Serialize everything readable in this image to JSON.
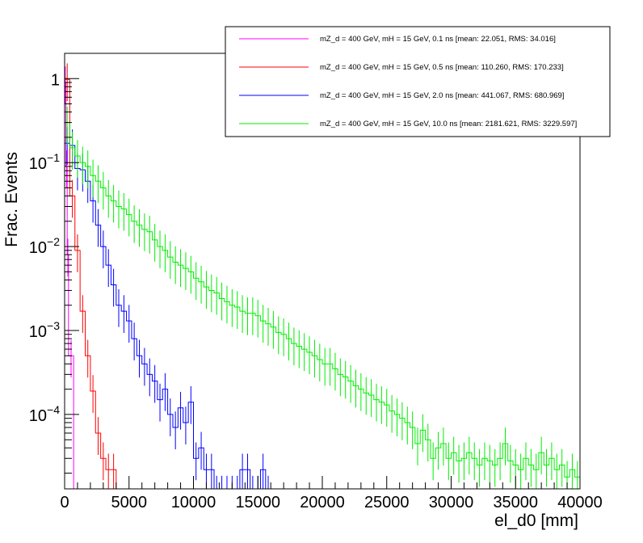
{
  "chart_data": {
    "type": "line",
    "title": "",
    "xlabel": "el_d0 [mm]",
    "ylabel": "Frac. Events",
    "xlim": [
      0,
      40000
    ],
    "ylim": [
      1.3e-05,
      2.0
    ],
    "yscale": "log",
    "grid": false,
    "legend_position": "top-right",
    "x_ticks": [
      0,
      5000,
      10000,
      15000,
      20000,
      25000,
      30000,
      35000,
      40000
    ],
    "x_tick_labels": [
      "0",
      "5000",
      "10000",
      "15000",
      "20000",
      "25000",
      "30000",
      "35000",
      "40000"
    ],
    "y_major_ticks": [
      {
        "value": 0.0001,
        "base": "10",
        "exp": "−4"
      },
      {
        "value": 0.001,
        "base": "10",
        "exp": "−3"
      },
      {
        "value": 0.01,
        "base": "10",
        "exp": "−2"
      },
      {
        "value": 0.1,
        "base": "10",
        "exp": "−1"
      },
      {
        "value": 1,
        "base": "1",
        "exp": ""
      }
    ],
    "bin_width": 400,
    "series": [
      {
        "name": "mZ_d = 400 GeV, mH = 15 GeV, 0.1 ns [mean: 22.051, RMS: 34.016]",
        "color": "#ff00ff",
        "bins": [
          [
            0,
            0.9
          ],
          [
            100,
            0.09
          ],
          [
            200,
            0.008
          ],
          [
            300,
            0.0005
          ]
        ]
      },
      {
        "name": "mZ_d = 400 GeV, mH = 15 GeV, 0.5 ns [mean: 110.260, RMS: 170.233]",
        "color": "#ff0000",
        "bins": [
          [
            0,
            0.98
          ],
          [
            400,
            0.04
          ],
          [
            800,
            0.009
          ],
          [
            1200,
            0.0017
          ],
          [
            1600,
            0.0005
          ],
          [
            2000,
            0.00019
          ],
          [
            2400,
            6e-05
          ],
          [
            2800,
            3e-05
          ],
          [
            3200,
            2.2e-05
          ],
          [
            3600,
            2.2e-05
          ]
        ]
      },
      {
        "name": "mZ_d = 400 GeV, mH = 15 GeV, 2.0 ns [mean: 441.067, RMS: 680.969]",
        "color": "#0000ff",
        "bins": [
          [
            0,
            0.17
          ],
          [
            400,
            0.16
          ],
          [
            800,
            0.085
          ],
          [
            1200,
            0.082
          ],
          [
            1600,
            0.06
          ],
          [
            2000,
            0.035
          ],
          [
            2400,
            0.018
          ],
          [
            2800,
            0.01
          ],
          [
            3200,
            0.006
          ],
          [
            3600,
            0.0035
          ],
          [
            4000,
            0.002
          ],
          [
            4400,
            0.0017
          ],
          [
            4800,
            0.0013
          ],
          [
            5200,
            0.0008
          ],
          [
            5600,
            0.0005
          ],
          [
            6000,
            0.0004
          ],
          [
            6400,
            0.0003
          ],
          [
            6800,
            0.00025
          ],
          [
            7200,
            0.00015
          ],
          [
            7600,
            0.0002
          ],
          [
            8000,
            0.0001
          ],
          [
            8400,
            7e-05
          ],
          [
            8800,
            0.00012
          ],
          [
            9200,
            8e-05
          ],
          [
            9600,
            0.00014
          ],
          [
            10000,
            3e-05
          ],
          [
            10400,
            4e-05
          ],
          [
            10800,
            2.2e-05
          ],
          [
            11200,
            2.2e-05
          ],
          [
            11600,
            1.2e-05
          ],
          [
            12000,
            1.2e-05
          ],
          [
            12400,
            1.2e-05
          ],
          [
            12800,
            1.2e-05
          ],
          [
            13200,
            1.2e-05
          ],
          [
            13600,
            2.2e-05
          ],
          [
            14000,
            2.2e-05
          ],
          [
            14400,
            1.2e-05
          ],
          [
            14800,
            1.2e-05
          ],
          [
            15200,
            2.2e-05
          ],
          [
            15600,
            1.2e-05
          ]
        ]
      },
      {
        "name": "mZ_d = 400 GeV, mH = 15 GeV, 10.0 ns [mean: 2181.621, RMS: 3229.597]",
        "color": "#00ee00",
        "bins": [
          [
            0,
            0.3
          ],
          [
            400,
            0.15
          ],
          [
            800,
            0.12
          ],
          [
            1200,
            0.1
          ],
          [
            1600,
            0.09
          ],
          [
            2000,
            0.07
          ],
          [
            2400,
            0.06
          ],
          [
            2800,
            0.05
          ],
          [
            3200,
            0.04
          ],
          [
            3600,
            0.035
          ],
          [
            4000,
            0.03
          ],
          [
            4400,
            0.028
          ],
          [
            4800,
            0.024
          ],
          [
            5200,
            0.02
          ],
          [
            5600,
            0.018
          ],
          [
            6000,
            0.016
          ],
          [
            6400,
            0.015
          ],
          [
            6800,
            0.012
          ],
          [
            7200,
            0.01
          ],
          [
            7600,
            0.009
          ],
          [
            8000,
            0.0075
          ],
          [
            8400,
            0.0065
          ],
          [
            8800,
            0.006
          ],
          [
            9200,
            0.0055
          ],
          [
            9600,
            0.005
          ],
          [
            10000,
            0.0042
          ],
          [
            10400,
            0.0038
          ],
          [
            10800,
            0.0033
          ],
          [
            11200,
            0.003
          ],
          [
            11600,
            0.0028
          ],
          [
            12000,
            0.0024
          ],
          [
            12400,
            0.0022
          ],
          [
            12800,
            0.002
          ],
          [
            13200,
            0.0019
          ],
          [
            13600,
            0.0017
          ],
          [
            14000,
            0.0016
          ],
          [
            14400,
            0.0016
          ],
          [
            14800,
            0.0015
          ],
          [
            15200,
            0.0013
          ],
          [
            15600,
            0.0012
          ],
          [
            16000,
            0.0011
          ],
          [
            16400,
            0.00095
          ],
          [
            16800,
            0.0009
          ],
          [
            17200,
            0.0008
          ],
          [
            17600,
            0.0007
          ],
          [
            18000,
            0.00065
          ],
          [
            18400,
            0.0006
          ],
          [
            18800,
            0.00055
          ],
          [
            19200,
            0.0005
          ],
          [
            19600,
            0.00045
          ],
          [
            20000,
            0.0004
          ],
          [
            20400,
            0.0004
          ],
          [
            20800,
            0.00035
          ],
          [
            21200,
            0.0003
          ],
          [
            21600,
            0.00028
          ],
          [
            22000,
            0.00025
          ],
          [
            22400,
            0.00022
          ],
          [
            22800,
            0.0002
          ],
          [
            23200,
            0.00018
          ],
          [
            23600,
            0.00017
          ],
          [
            24000,
            0.00015
          ],
          [
            24400,
            0.00014
          ],
          [
            24800,
            0.00013
          ],
          [
            25200,
            0.00011
          ],
          [
            25600,
            0.0001
          ],
          [
            26000,
            9e-05
          ],
          [
            26400,
            8e-05
          ],
          [
            26800,
            7e-05
          ],
          [
            27200,
            4.5e-05
          ],
          [
            27600,
            6.5e-05
          ],
          [
            28000,
            5e-05
          ],
          [
            28400,
            3e-05
          ],
          [
            28800,
            4e-05
          ],
          [
            29200,
            4.5e-05
          ],
          [
            29600,
            3e-05
          ],
          [
            30000,
            3.5e-05
          ],
          [
            30400,
            2.8e-05
          ],
          [
            30800,
            3e-05
          ],
          [
            31200,
            3.5e-05
          ],
          [
            31600,
            3e-05
          ],
          [
            32000,
            2.5e-05
          ],
          [
            32400,
            3e-05
          ],
          [
            32800,
            2.8e-05
          ],
          [
            33200,
            2.5e-05
          ],
          [
            33600,
            3e-05
          ],
          [
            34000,
            4.5e-05
          ],
          [
            34400,
            2.8e-05
          ],
          [
            34800,
            2.5e-05
          ],
          [
            35200,
            2.2e-05
          ],
          [
            35600,
            3e-05
          ],
          [
            36000,
            2.5e-05
          ],
          [
            36400,
            2.2e-05
          ],
          [
            36800,
            3.5e-05
          ],
          [
            37200,
            2.5e-05
          ],
          [
            37600,
            3e-05
          ],
          [
            38000,
            2.2e-05
          ],
          [
            38400,
            2.5e-05
          ],
          [
            38800,
            1.8e-05
          ],
          [
            39200,
            2.2e-05
          ],
          [
            39600,
            1.8e-05
          ]
        ]
      }
    ]
  }
}
